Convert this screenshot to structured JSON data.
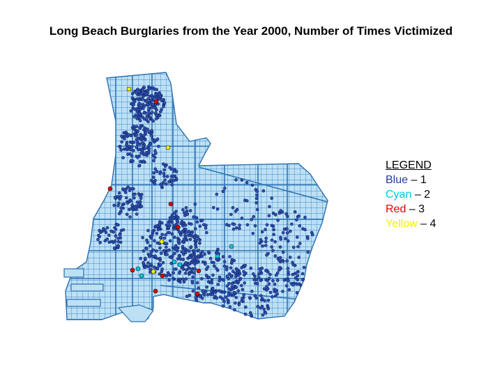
{
  "title": "Long Beach Burglaries from the Year 2000, Number of Times Victimized",
  "legend": {
    "heading": "LEGEND",
    "items": [
      {
        "color_name": "Blue",
        "value": "– 1",
        "color": "#1f3d99"
      },
      {
        "color_name": "Cyan",
        "value": "– 2",
        "color": "#00c8e0"
      },
      {
        "color_name": "Red",
        "value": "– 3",
        "color": "#e00000"
      },
      {
        "color_name": "Yellow",
        "value": "– 4",
        "color": "#f2f200"
      }
    ]
  },
  "map": {
    "land_color": "#bde0f5",
    "street_color": "#3b86c4",
    "point_fill": "#2f4fae",
    "point_stroke": "#0c1d5e"
  }
}
